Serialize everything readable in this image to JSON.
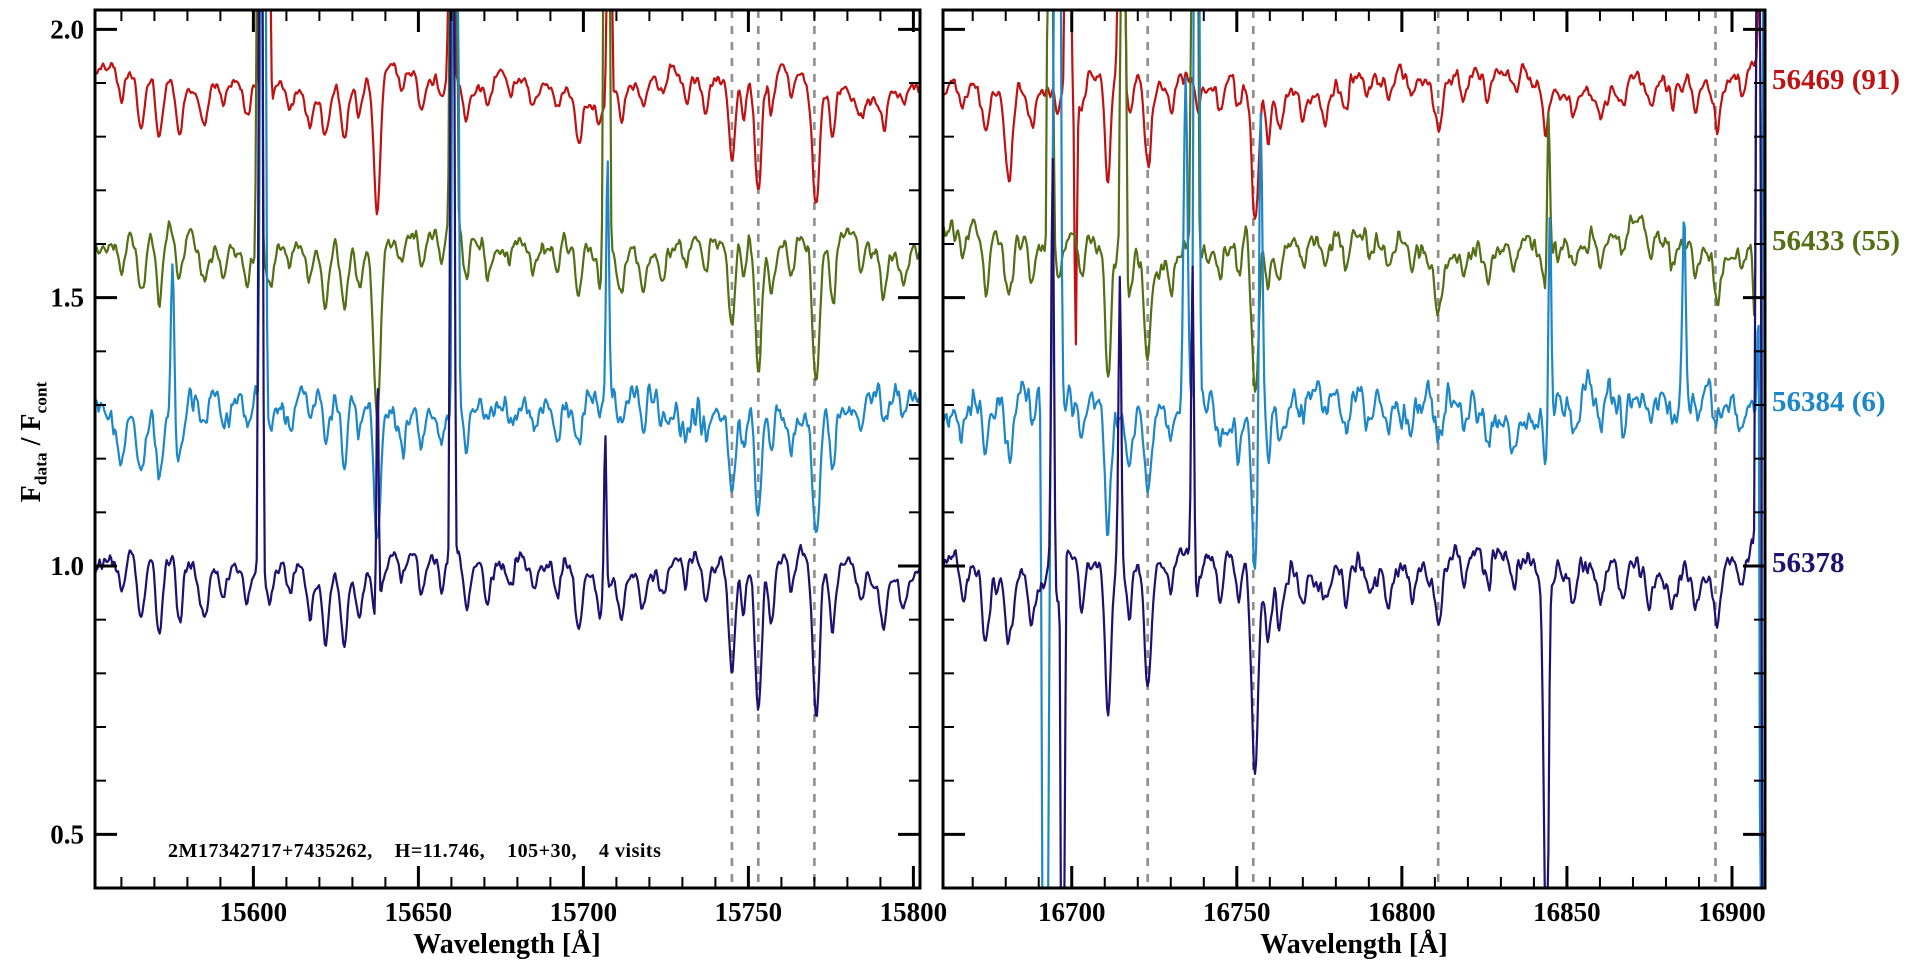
{
  "figure": {
    "kind": "stellar-spectra-multi-visit",
    "background": "#ffffff",
    "axis_color": "#000000"
  },
  "chart_data": {
    "type": "line",
    "title": "",
    "annotation": "2M17342717+7435262,    H=11.746,    105+30,    4 visits",
    "y_axis": {
      "label_parts": {
        "f1": "F",
        "sub1": "data",
        "mid": " / F",
        "sub2": "cont"
      },
      "range": [
        0.4,
        2.036
      ],
      "ticks": [
        0.5,
        1.0,
        1.5,
        2.0
      ],
      "tick_labels": [
        "0.5",
        "1.0",
        "1.5",
        "2.0"
      ],
      "minor_step": 0.1
    },
    "series": [
      {
        "name": "56469",
        "label": "56469 (91)",
        "color": "#bf1313",
        "offset": 1.9,
        "noise": 0.018
      },
      {
        "name": "56433",
        "label": "56433 (55)",
        "color": "#546f15",
        "offset": 1.6,
        "noise": 0.024
      },
      {
        "name": "56384",
        "label": "56384 (6)",
        "color": "#1e87c8",
        "offset": 1.3,
        "noise": 0.036
      },
      {
        "name": "56378",
        "label": "56378",
        "color": "#201070",
        "offset": 1.0,
        "noise": 0.023
      }
    ],
    "line_strength": [
      0.85,
      1.0,
      0.9,
      1.15
    ],
    "dashed_line_color": "#8e8e8e",
    "panels": [
      {
        "id": "left",
        "xlabel": "Wavelength [Å]",
        "x_range": [
          15552,
          15802
        ],
        "xticks": [
          {
            "v": 15600,
            "l": "15600"
          },
          {
            "v": 15650,
            "l": "15650"
          },
          {
            "v": 15700,
            "l": "15700"
          },
          {
            "v": 15750,
            "l": "15750"
          },
          {
            "v": 15800,
            "l": "15800"
          }
        ],
        "minor_step": 10,
        "dashed_lines": [
          15745,
          15753,
          15770
        ],
        "seed": 11,
        "noise_mult": 1.0,
        "absorption": [
          {
            "x": 15560,
            "d": 0.07,
            "w": 1.0
          },
          {
            "x": 15566,
            "d": 0.11,
            "w": 1.1
          },
          {
            "x": 15571.5,
            "d": 0.13,
            "w": 1.0
          },
          {
            "x": 15577.5,
            "d": 0.1,
            "w": 1.0
          },
          {
            "x": 15585,
            "d": 0.07,
            "w": 1.1
          },
          {
            "x": 15591,
            "d": 0.05,
            "w": 0.9
          },
          {
            "x": 15598,
            "d": 0.05,
            "w": 0.9
          },
          {
            "x": 15605,
            "d": 0.06,
            "w": 0.9
          },
          {
            "x": 15611,
            "d": 0.05,
            "w": 0.9
          },
          {
            "x": 15617,
            "d": 0.06,
            "w": 0.9
          },
          {
            "x": 15622,
            "d": 0.1,
            "w": 1.0
          },
          {
            "x": 15627.5,
            "d": 0.12,
            "w": 1.0
          },
          {
            "x": 15632,
            "d": 0.07,
            "w": 0.9
          },
          {
            "x": 15637.5,
            "d": 0.3,
            "w": 1.0,
            "s": {
              "3": 0.35
            }
          },
          {
            "x": 15645,
            "d": 0.05,
            "w": 0.9
          },
          {
            "x": 15651,
            "d": 0.06,
            "w": 0.9
          },
          {
            "x": 15657,
            "d": 0.05,
            "w": 0.8
          },
          {
            "x": 15664.5,
            "d": 0.08,
            "w": 0.9
          },
          {
            "x": 15671,
            "d": 0.05,
            "w": 0.9
          },
          {
            "x": 15678,
            "d": 0.04,
            "w": 0.9
          },
          {
            "x": 15685,
            "d": 0.05,
            "w": 0.9
          },
          {
            "x": 15692,
            "d": 0.05,
            "w": 0.9
          },
          {
            "x": 15698.5,
            "d": 0.1,
            "w": 1.0
          },
          {
            "x": 15705,
            "d": 0.05,
            "w": 0.9
          },
          {
            "x": 15711.5,
            "d": 0.07,
            "w": 0.9
          },
          {
            "x": 15718,
            "d": 0.05,
            "w": 0.9
          },
          {
            "x": 15724,
            "d": 0.04,
            "w": 0.9
          },
          {
            "x": 15731,
            "d": 0.05,
            "w": 0.9
          },
          {
            "x": 15737,
            "d": 0.06,
            "w": 0.9
          },
          {
            "x": 15745,
            "d": 0.18,
            "w": 1.0
          },
          {
            "x": 15748.5,
            "d": 0.08,
            "w": 0.8
          },
          {
            "x": 15753,
            "d": 0.24,
            "w": 1.0
          },
          {
            "x": 15757,
            "d": 0.09,
            "w": 0.8
          },
          {
            "x": 15763,
            "d": 0.06,
            "w": 0.9
          },
          {
            "x": 15770.5,
            "d": 0.26,
            "w": 1.1
          },
          {
            "x": 15775.5,
            "d": 0.12,
            "w": 0.9
          },
          {
            "x": 15784,
            "d": 0.05,
            "w": 0.9
          },
          {
            "x": 15791,
            "d": 0.07,
            "w": 0.9
          },
          {
            "x": 15797,
            "d": 0.05,
            "w": 0.9
          }
        ],
        "emission": [
          {
            "x": 15602.4,
            "a": 9,
            "w": 0.4,
            "si": 0
          },
          {
            "x": 15604.6,
            "a": 2.0,
            "w": 0.35,
            "si": 0
          },
          {
            "x": 15601.8,
            "a": 9,
            "w": 0.4,
            "si": 1
          },
          {
            "x": 15602.9,
            "a": 9,
            "w": 0.45,
            "si": 2
          },
          {
            "x": 15602.2,
            "a": 9,
            "w": 0.35,
            "si": 3
          },
          {
            "x": 15575.5,
            "a": 0.3,
            "w": 0.5,
            "si": 2
          },
          {
            "x": 15637.6,
            "a": 0.5,
            "w": 0.35,
            "si": 3
          },
          {
            "x": 15660.0,
            "a": 9,
            "w": 0.4,
            "si": 0
          },
          {
            "x": 15660.6,
            "a": 9,
            "w": 0.5,
            "si": 1
          },
          {
            "x": 15661.2,
            "a": 9,
            "w": 0.45,
            "si": 2
          },
          {
            "x": 15660.3,
            "a": 9,
            "w": 0.35,
            "si": 3
          },
          {
            "x": 15707.8,
            "a": 9,
            "w": 0.35,
            "si": 0
          },
          {
            "x": 15707.0,
            "a": 9,
            "w": 0.45,
            "si": 1
          },
          {
            "x": 15707.3,
            "a": 0.45,
            "w": 0.4,
            "si": 2
          },
          {
            "x": 15706.6,
            "a": 0.3,
            "w": 0.35,
            "si": 3
          }
        ]
      },
      {
        "id": "right",
        "xlabel": "Wavelength [Å]",
        "x_range": [
          16661,
          16910
        ],
        "xticks": [
          {
            "v": 16700,
            "l": "16700"
          },
          {
            "v": 16750,
            "l": "16750"
          },
          {
            "v": 16800,
            "l": "16800"
          },
          {
            "v": 16850,
            "l": "16850"
          },
          {
            "v": 16900,
            "l": "16900"
          }
        ],
        "minor_step": 10,
        "dashed_lines": [
          16723,
          16755,
          16811,
          16895
        ],
        "seed": 57,
        "noise_mult": 1.3,
        "absorption": [
          {
            "x": 16667,
            "d": 0.06,
            "w": 0.9
          },
          {
            "x": 16674,
            "d": 0.09,
            "w": 1.0
          },
          {
            "x": 16681,
            "d": 0.11,
            "w": 1.1,
            "s": {
              "0": 1.8
            }
          },
          {
            "x": 16688,
            "d": 0.07,
            "w": 0.9
          },
          {
            "x": 16696,
            "d": 0.06,
            "w": 0.9
          },
          {
            "x": 16703,
            "d": 0.08,
            "w": 0.9
          },
          {
            "x": 16711,
            "d": 0.24,
            "w": 0.9
          },
          {
            "x": 16717.5,
            "d": 0.09,
            "w": 0.9
          },
          {
            "x": 16723,
            "d": 0.18,
            "w": 1.0
          },
          {
            "x": 16730,
            "d": 0.06,
            "w": 0.9
          },
          {
            "x": 16738,
            "d": 0.06,
            "w": 0.9
          },
          {
            "x": 16745,
            "d": 0.06,
            "w": 0.9
          },
          {
            "x": 16750.5,
            "d": 0.07,
            "w": 0.9
          },
          {
            "x": 16755.5,
            "d": 0.3,
            "w": 1.0,
            "s": {
              "2": 1.1,
              "3": 1.1
            }
          },
          {
            "x": 16759.5,
            "d": 0.1,
            "w": 0.8
          },
          {
            "x": 16763,
            "d": 0.07,
            "w": 0.9
          },
          {
            "x": 16770,
            "d": 0.05,
            "w": 0.9
          },
          {
            "x": 16777,
            "d": 0.05,
            "w": 0.9
          },
          {
            "x": 16783,
            "d": 0.06,
            "w": 0.9
          },
          {
            "x": 16790,
            "d": 0.04,
            "w": 0.9
          },
          {
            "x": 16796,
            "d": 0.05,
            "w": 0.9
          },
          {
            "x": 16803,
            "d": 0.05,
            "w": 0.9
          },
          {
            "x": 16811,
            "d": 0.1,
            "w": 1.0
          },
          {
            "x": 16819,
            "d": 0.05,
            "w": 0.9
          },
          {
            "x": 16826,
            "d": 0.05,
            "w": 0.9
          },
          {
            "x": 16834,
            "d": 0.05,
            "w": 0.9
          },
          {
            "x": 16843.5,
            "d": 0.1,
            "w": 0.7,
            "s": {
              "3": 4.2
            }
          },
          {
            "x": 16852,
            "d": 0.06,
            "w": 0.9
          },
          {
            "x": 16860,
            "d": 0.05,
            "w": 0.9
          },
          {
            "x": 16867,
            "d": 0.05,
            "w": 0.9
          },
          {
            "x": 16875,
            "d": 0.05,
            "w": 0.9
          },
          {
            "x": 16882,
            "d": 0.05,
            "w": 0.9
          },
          {
            "x": 16889,
            "d": 0.05,
            "w": 0.9
          },
          {
            "x": 16895.5,
            "d": 0.08,
            "w": 1.0
          },
          {
            "x": 16903,
            "d": 0.05,
            "w": 0.9
          }
        ],
        "emission": [
          {
            "x": 16692.0,
            "a": -9,
            "w": 0.5,
            "si": 2
          },
          {
            "x": 16695.6,
            "a": 9,
            "w": 0.55,
            "si": 2
          },
          {
            "x": 16694.2,
            "a": 0.8,
            "w": 0.4,
            "si": 3
          },
          {
            "x": 16697.3,
            "a": -9,
            "w": 0.3,
            "si": 3
          },
          {
            "x": 16698.8,
            "a": 9,
            "w": 0.4,
            "si": 0
          },
          {
            "x": 16701.2,
            "a": -0.5,
            "w": 0.35,
            "si": 0
          },
          {
            "x": 16693.5,
            "a": 9,
            "w": 0.4,
            "si": 1
          },
          {
            "x": 16715.0,
            "a": 9,
            "w": 0.45,
            "si": 0
          },
          {
            "x": 16715.6,
            "a": 9,
            "w": 0.4,
            "si": 1
          },
          {
            "x": 16714.6,
            "a": 0.55,
            "w": 0.4,
            "si": 3
          },
          {
            "x": 16737.2,
            "a": 9,
            "w": 0.5,
            "si": 1
          },
          {
            "x": 16737.8,
            "a": 9,
            "w": 0.45,
            "si": 2
          },
          {
            "x": 16734.5,
            "a": 0.6,
            "w": 0.6,
            "si": 2
          },
          {
            "x": 16736.6,
            "a": 0.55,
            "w": 0.4,
            "si": 3
          },
          {
            "x": 16757.2,
            "a": 0.6,
            "w": 0.5,
            "si": 2
          },
          {
            "x": 16844.8,
            "a": 0.4,
            "w": 0.4,
            "si": 2
          },
          {
            "x": 16844.0,
            "a": -0.45,
            "w": 0.45,
            "si": 3
          },
          {
            "x": 16844.4,
            "a": 0.3,
            "w": 0.4,
            "si": 1
          },
          {
            "x": 16885.5,
            "a": 0.35,
            "w": 0.5,
            "si": 2
          },
          {
            "x": 16907.0,
            "a": -0.2,
            "w": 0.5,
            "si": 1
          },
          {
            "x": 16908.5,
            "a": 9,
            "w": 0.5,
            "si": 1
          },
          {
            "x": 16909.3,
            "a": 9,
            "w": 0.55,
            "si": 2
          },
          {
            "x": 16909.0,
            "a": -9,
            "w": 0.4,
            "si": 2
          },
          {
            "x": 16908.0,
            "a": 9,
            "w": 0.4,
            "si": 3
          },
          {
            "x": 16909.6,
            "a": -9,
            "w": 0.35,
            "si": 3
          },
          {
            "x": 16909.0,
            "a": 9,
            "w": 0.4,
            "si": 0
          }
        ]
      }
    ]
  }
}
